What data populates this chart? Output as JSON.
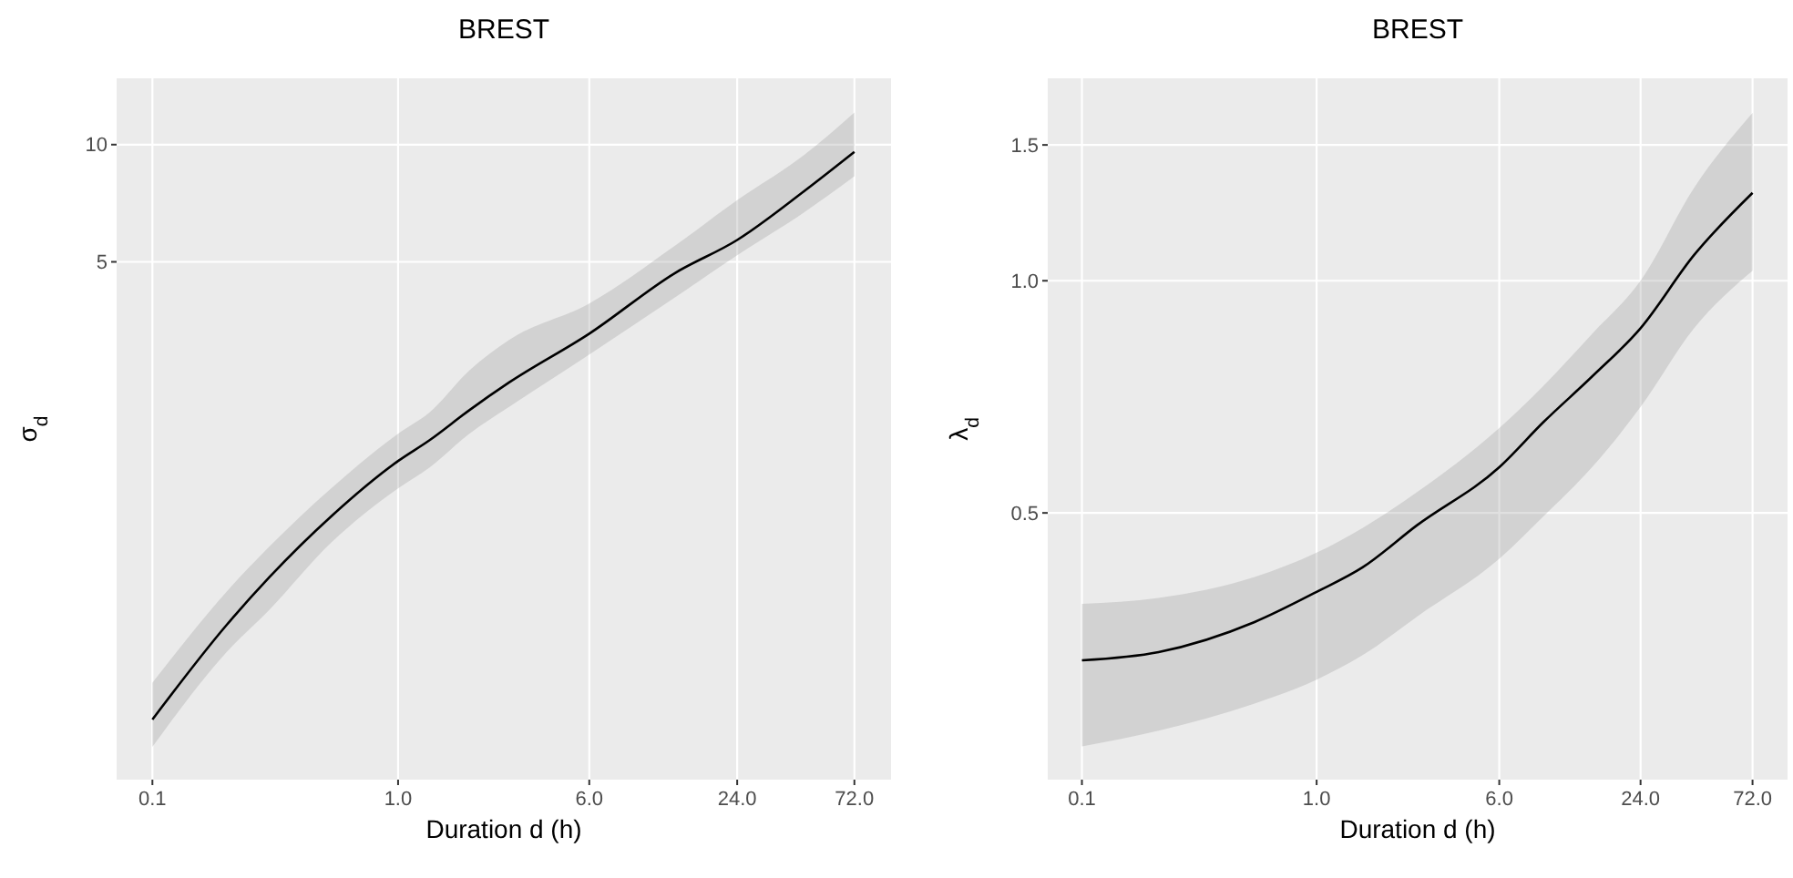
{
  "chart_data": [
    {
      "type": "line",
      "title": "BREST",
      "xlabel": "Duration d (h)",
      "ylabel": "σ$_{d}$",
      "log": "xy",
      "grid": true,
      "xlim": [
        0.0715,
        101.5
      ],
      "xticks": [
        {
          "value": 0.1,
          "label": "0.1"
        },
        {
          "value": 1,
          "label": "1.0"
        },
        {
          "value": 6,
          "label": "6.0"
        },
        {
          "value": 24,
          "label": "24.0"
        },
        {
          "value": 72,
          "label": "72.0"
        }
      ],
      "ylim": [
        0.234,
        14.8
      ],
      "yticks": [
        5,
        10
      ],
      "series": [
        {
          "color": "#000000",
          "x": [
            0.1,
            0.2,
            0.3,
            0.534,
            1,
            1.34,
            1.95,
            2.83,
            6,
            13.4,
            24,
            44.9,
            72
          ],
          "values": [
            0.334,
            0.583,
            0.776,
            1.11,
            1.54,
            1.74,
            2.08,
            2.45,
            3.27,
            4.68,
            5.69,
            7.59,
            9.58
          ],
          "lower": [
            0.284,
            0.497,
            0.64,
            0.95,
            1.31,
            1.48,
            1.81,
            2.12,
            2.89,
            4.05,
            5.2,
            6.7,
            8.3
          ],
          "upper": [
            0.415,
            0.71,
            0.93,
            1.31,
            1.81,
            2.05,
            2.63,
            3.15,
            3.91,
            5.5,
            7.2,
            9.4,
            12.1
          ]
        }
      ]
    },
    {
      "type": "line",
      "title": "BREST",
      "xlabel": "Duration d (h)",
      "ylabel": "λ$_{d}$",
      "log": "xy",
      "grid": true,
      "xlim": [
        0.0715,
        101.5
      ],
      "xticks": [
        {
          "value": 0.1,
          "label": "0.1"
        },
        {
          "value": 1,
          "label": "1.0"
        },
        {
          "value": 6,
          "label": "6.0"
        },
        {
          "value": 24,
          "label": "24.0"
        },
        {
          "value": 72,
          "label": "72.0"
        }
      ],
      "ylim": [
        0.2255,
        1.83
      ],
      "yticks": [
        0.5,
        {
          "value": 1,
          "label": "1.0"
        },
        1.5
      ],
      "series": [
        {
          "color": "#000000",
          "x": [
            0.1,
            0.212,
            0.544,
            1,
            1.57,
            2.68,
            6,
            9.27,
            14.9,
            24,
            40.6,
            72
          ],
          "values": [
            0.322,
            0.33,
            0.361,
            0.395,
            0.425,
            0.482,
            0.573,
            0.656,
            0.751,
            0.868,
            1.08,
            1.3
          ],
          "lower": [
            0.249,
            0.261,
            0.283,
            0.304,
            0.327,
            0.367,
            0.436,
            0.495,
            0.573,
            0.686,
            0.868,
            1.03
          ],
          "upper": [
            0.381,
            0.388,
            0.413,
            0.444,
            0.478,
            0.532,
            0.644,
            0.731,
            0.853,
            1.0,
            1.32,
            1.65
          ]
        }
      ]
    }
  ]
}
